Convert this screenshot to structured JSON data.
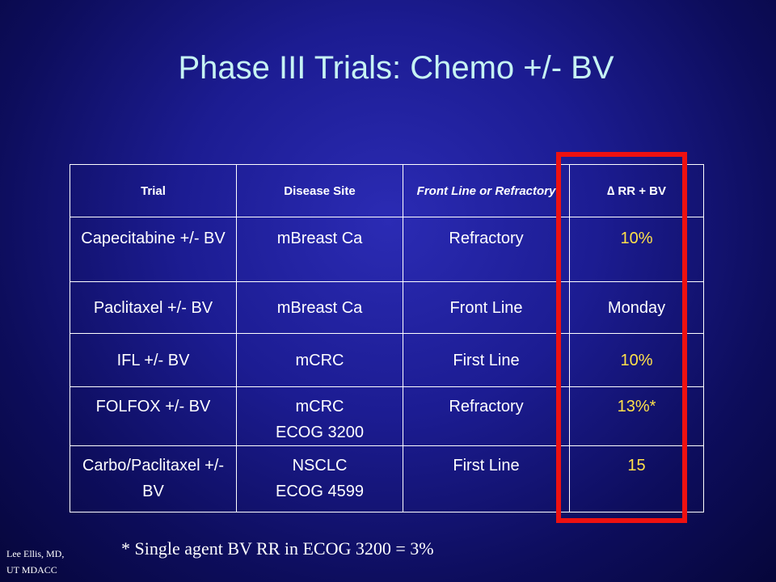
{
  "slide": {
    "title": "Phase III Trials: Chemo +/- BV",
    "footnote": "* Single agent BV RR in ECOG 3200 = 3%",
    "author_line1": "Lee Ellis, MD,",
    "author_line2": "UT MDACC",
    "highlight_color": "#ee1111",
    "value_color": "#ffe14a"
  },
  "table": {
    "headers": [
      "Trial",
      "Disease Site",
      "Front Line or Refractory",
      "∆ RR + BV"
    ],
    "rows": [
      {
        "trial": "Capecitabine +/- BV",
        "site": "mBreast Ca",
        "site2": "",
        "line": "Refractory",
        "rr": "10%"
      },
      {
        "trial": "Paclitaxel +/- BV",
        "site": "mBreast Ca",
        "site2": "",
        "line": "Front Line",
        "rr": "Monday"
      },
      {
        "trial": "IFL +/- BV",
        "site": "mCRC",
        "site2": "",
        "line": "First Line",
        "rr": "10%"
      },
      {
        "trial": "FOLFOX +/- BV",
        "site": "mCRC",
        "site2": "ECOG 3200",
        "line": "Refractory",
        "rr": "13%*"
      },
      {
        "trial": "Carbo/Paclitaxel +/- BV",
        "site": "NSCLC",
        "site2": "ECOG 4599",
        "line": "First Line",
        "rr": "15"
      }
    ]
  }
}
